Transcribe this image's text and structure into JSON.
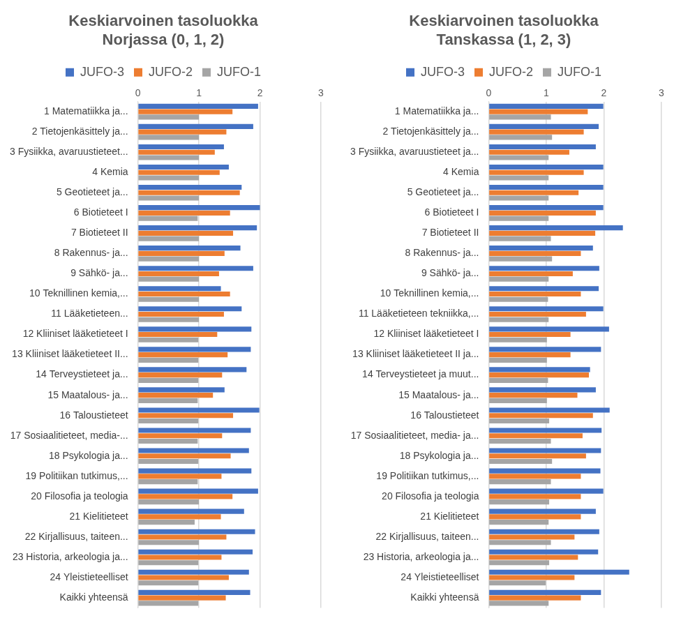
{
  "chart_data": [
    {
      "type": "bar",
      "orientation": "horizontal",
      "title": [
        "Keskiarvoinen tasoluokka",
        "Norjassa (0, 1, 2)"
      ],
      "categories": [
        "1 Matematiikka ja...",
        "2 Tietojenkäsittely ja...",
        "3 Fysiikka, avaruustieteet...",
        "4 Kemia",
        "5 Geotieteet ja...",
        "6 Biotieteet I",
        "7 Biotieteet II",
        "8 Rakennus- ja...",
        "9 Sähkö- ja...",
        "10 Teknillinen kemia,...",
        "11 Lääketieteen...",
        "12 Kliiniset lääketieteet I",
        "13 Kliiniset lääketieteet II...",
        "14 Terveystieteet ja...",
        "15 Maatalous- ja...",
        "16 Taloustieteet",
        "17 Sosiaalitieteet, media-...",
        "18 Psykologia ja...",
        "19 Politiikan tutkimus,...",
        "20 Filosofia ja teologia",
        "21 Kielitieteet",
        "22 Kirjallisuus, taiteen...",
        "23 Historia, arkeologia ja...",
        "24 Yleistieteelliset",
        "Kaikki yhteensä"
      ],
      "series": [
        {
          "name": "JUFO-3",
          "color": "#4472c4",
          "values": [
            1.97,
            1.89,
            1.41,
            1.49,
            1.7,
            2.0,
            1.95,
            1.68,
            1.89,
            1.36,
            1.7,
            1.86,
            1.85,
            1.78,
            1.42,
            1.99,
            1.85,
            1.82,
            1.86,
            1.97,
            1.74,
            1.92,
            1.88,
            1.82,
            1.84
          ]
        },
        {
          "name": "JUFO-2",
          "color": "#ed7d31",
          "values": [
            1.55,
            1.45,
            1.26,
            1.34,
            1.67,
            1.51,
            1.56,
            1.42,
            1.33,
            1.51,
            1.41,
            1.3,
            1.47,
            1.38,
            1.23,
            1.56,
            1.38,
            1.52,
            1.37,
            1.55,
            1.36,
            1.45,
            1.37,
            1.49,
            1.44
          ]
        },
        {
          "name": "JUFO-1",
          "color": "#a5a5a5",
          "values": [
            1.0,
            1.0,
            1.0,
            1.0,
            1.0,
            0.98,
            1.0,
            1.0,
            1.0,
            1.0,
            1.0,
            0.99,
            0.99,
            0.99,
            0.98,
            0.99,
            0.98,
            0.99,
            0.98,
            1.0,
            0.93,
            1.0,
            0.99,
            0.99,
            0.99
          ]
        }
      ],
      "xlim": [
        0,
        3
      ],
      "xticks": [
        0,
        1,
        2,
        3
      ],
      "grid": true,
      "legend": "top"
    },
    {
      "type": "bar",
      "orientation": "horizontal",
      "title": [
        "Keskiarvoinen tasoluokka",
        "Tanskassa (1, 2, 3)"
      ],
      "categories": [
        "1 Matematiikka ja...",
        "2 Tietojenkäsittely ja...",
        "3 Fysiikka, avaruustieteet ja...",
        "4 Kemia",
        "5 Geotieteet ja...",
        "6 Biotieteet I",
        "7 Biotieteet II",
        "8 Rakennus- ja...",
        "9 Sähkö- ja...",
        "10 Teknillinen kemia,...",
        "11 Lääketieteen tekniikka,...",
        "12 Kliiniset lääketieteet I",
        "13 Kliiniset lääketieteet II ja...",
        "14 Terveystieteet ja muut...",
        "15 Maatalous- ja...",
        "16 Taloustieteet",
        "17 Sosiaalitieteet, media- ja...",
        "18 Psykologia ja...",
        "19 Politiikan tutkimus,...",
        "20 Filosofia ja teologia",
        "21 Kielitieteet",
        "22 Kirjallisuus, taiteen...",
        "23 Historia, arkeologia ja...",
        "24 Yleistieteelliset",
        "Kaikki yhteensä"
      ],
      "series": [
        {
          "name": "JUFO-3",
          "color": "#4472c4",
          "values": [
            1.99,
            1.91,
            1.86,
            1.99,
            1.99,
            1.99,
            2.33,
            1.81,
            1.92,
            1.91,
            1.99,
            2.09,
            1.95,
            1.76,
            1.86,
            2.1,
            1.96,
            1.95,
            1.94,
            1.99,
            1.86,
            1.92,
            1.9,
            2.44,
            1.95
          ]
        },
        {
          "name": "JUFO-2",
          "color": "#ed7d31",
          "values": [
            1.72,
            1.65,
            1.4,
            1.65,
            1.56,
            1.86,
            1.85,
            1.6,
            1.46,
            1.6,
            1.69,
            1.42,
            1.42,
            1.74,
            1.54,
            1.81,
            1.63,
            1.69,
            1.6,
            1.6,
            1.6,
            1.49,
            1.55,
            1.49,
            1.6
          ]
        },
        {
          "name": "JUFO-1",
          "color": "#a5a5a5",
          "values": [
            1.08,
            1.1,
            1.04,
            1.04,
            1.04,
            1.04,
            1.08,
            1.1,
            1.04,
            1.03,
            1.04,
            1.01,
            1.01,
            1.03,
            1.01,
            1.05,
            1.08,
            1.1,
            1.08,
            1.05,
            1.04,
            1.08,
            1.05,
            0.99,
            1.04
          ]
        }
      ],
      "xlim": [
        0,
        3
      ],
      "xticks": [
        0,
        1,
        2,
        3
      ],
      "grid": true,
      "legend": "top"
    }
  ]
}
